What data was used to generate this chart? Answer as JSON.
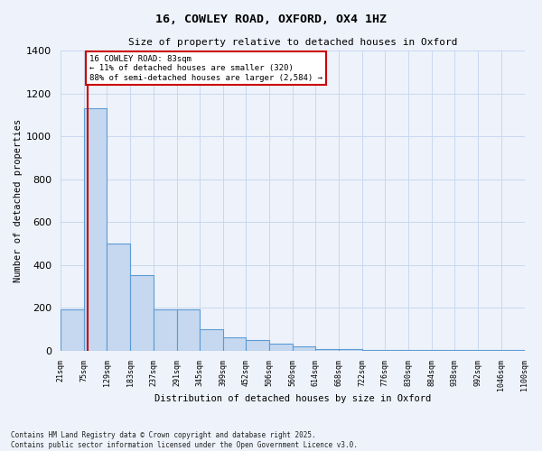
{
  "title1": "16, COWLEY ROAD, OXFORD, OX4 1HZ",
  "title2": "Size of property relative to detached houses in Oxford",
  "xlabel": "Distribution of detached houses by size in Oxford",
  "ylabel": "Number of detached properties",
  "footnote1": "Contains HM Land Registry data © Crown copyright and database right 2025.",
  "footnote2": "Contains public sector information licensed under the Open Government Licence v3.0.",
  "annotation_line1": "16 COWLEY ROAD: 83sqm",
  "annotation_line2": "← 11% of detached houses are smaller (320)",
  "annotation_line3": "88% of semi-detached houses are larger (2,584) →",
  "bar_edges": [
    21,
    75,
    129,
    183,
    237,
    291,
    345,
    399,
    452,
    506,
    560,
    614,
    668,
    722,
    776,
    830,
    884,
    938,
    992,
    1046,
    1100
  ],
  "bar_heights": [
    190,
    1130,
    500,
    350,
    190,
    190,
    100,
    60,
    50,
    30,
    20,
    5,
    5,
    3,
    3,
    2,
    2,
    2,
    2,
    2
  ],
  "property_line_x": 83,
  "ylim": [
    0,
    1400
  ],
  "yticks": [
    0,
    200,
    400,
    600,
    800,
    1000,
    1200,
    1400
  ],
  "bar_color": "#c5d8f0",
  "bar_edge_color": "#5b9bd5",
  "line_color": "#cc0000",
  "annotation_box_color": "#cc0000",
  "background_color": "#eef2fa",
  "grid_color": "#c8d8f0"
}
